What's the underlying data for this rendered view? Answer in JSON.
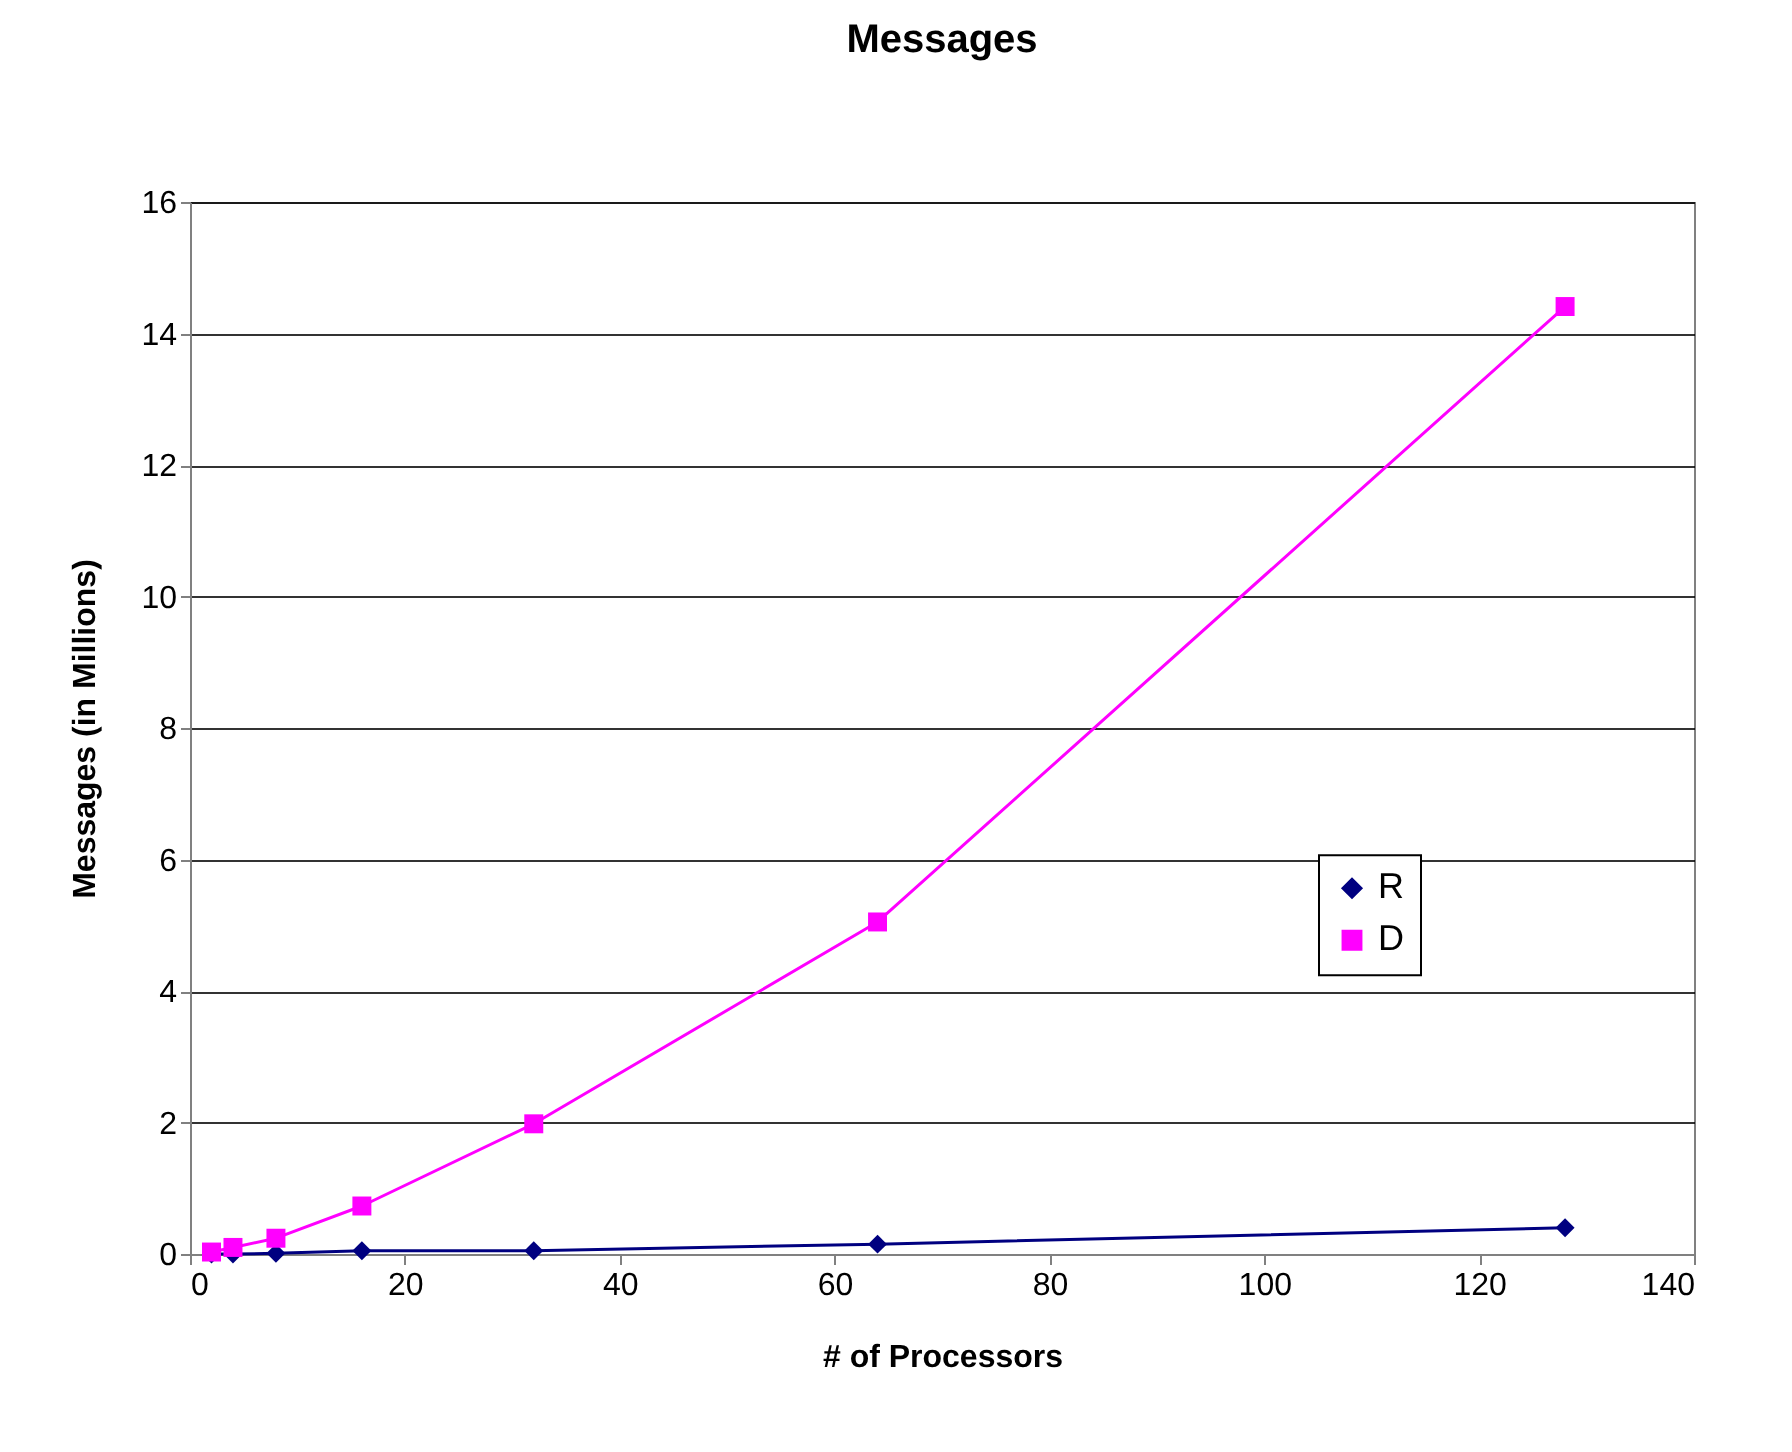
{
  "chart_data": {
    "type": "line",
    "title": "Messages",
    "xlabel": "# of Processors",
    "ylabel": "Messages (in Millions)",
    "x": [
      2,
      4,
      8,
      16,
      32,
      64,
      128
    ],
    "series": [
      {
        "name": "R",
        "color": "#000080",
        "marker": "diamond",
        "values": [
          0,
          0,
          0.01,
          0.05,
          0.05,
          0.15,
          0.4
        ]
      },
      {
        "name": "D",
        "color": "#ff00ff",
        "marker": "square",
        "values": [
          0.03,
          0.1,
          0.24,
          0.73,
          1.98,
          5.05,
          14.41
        ]
      }
    ],
    "xlim": [
      0,
      140
    ],
    "xticks": [
      0,
      20,
      40,
      60,
      80,
      100,
      120,
      140
    ],
    "ylim": [
      0,
      16
    ],
    "yticks": [
      0,
      2,
      4,
      6,
      8,
      10,
      12,
      14,
      16
    ],
    "grid": "y",
    "legend": "right",
    "line_style": "solid"
  }
}
